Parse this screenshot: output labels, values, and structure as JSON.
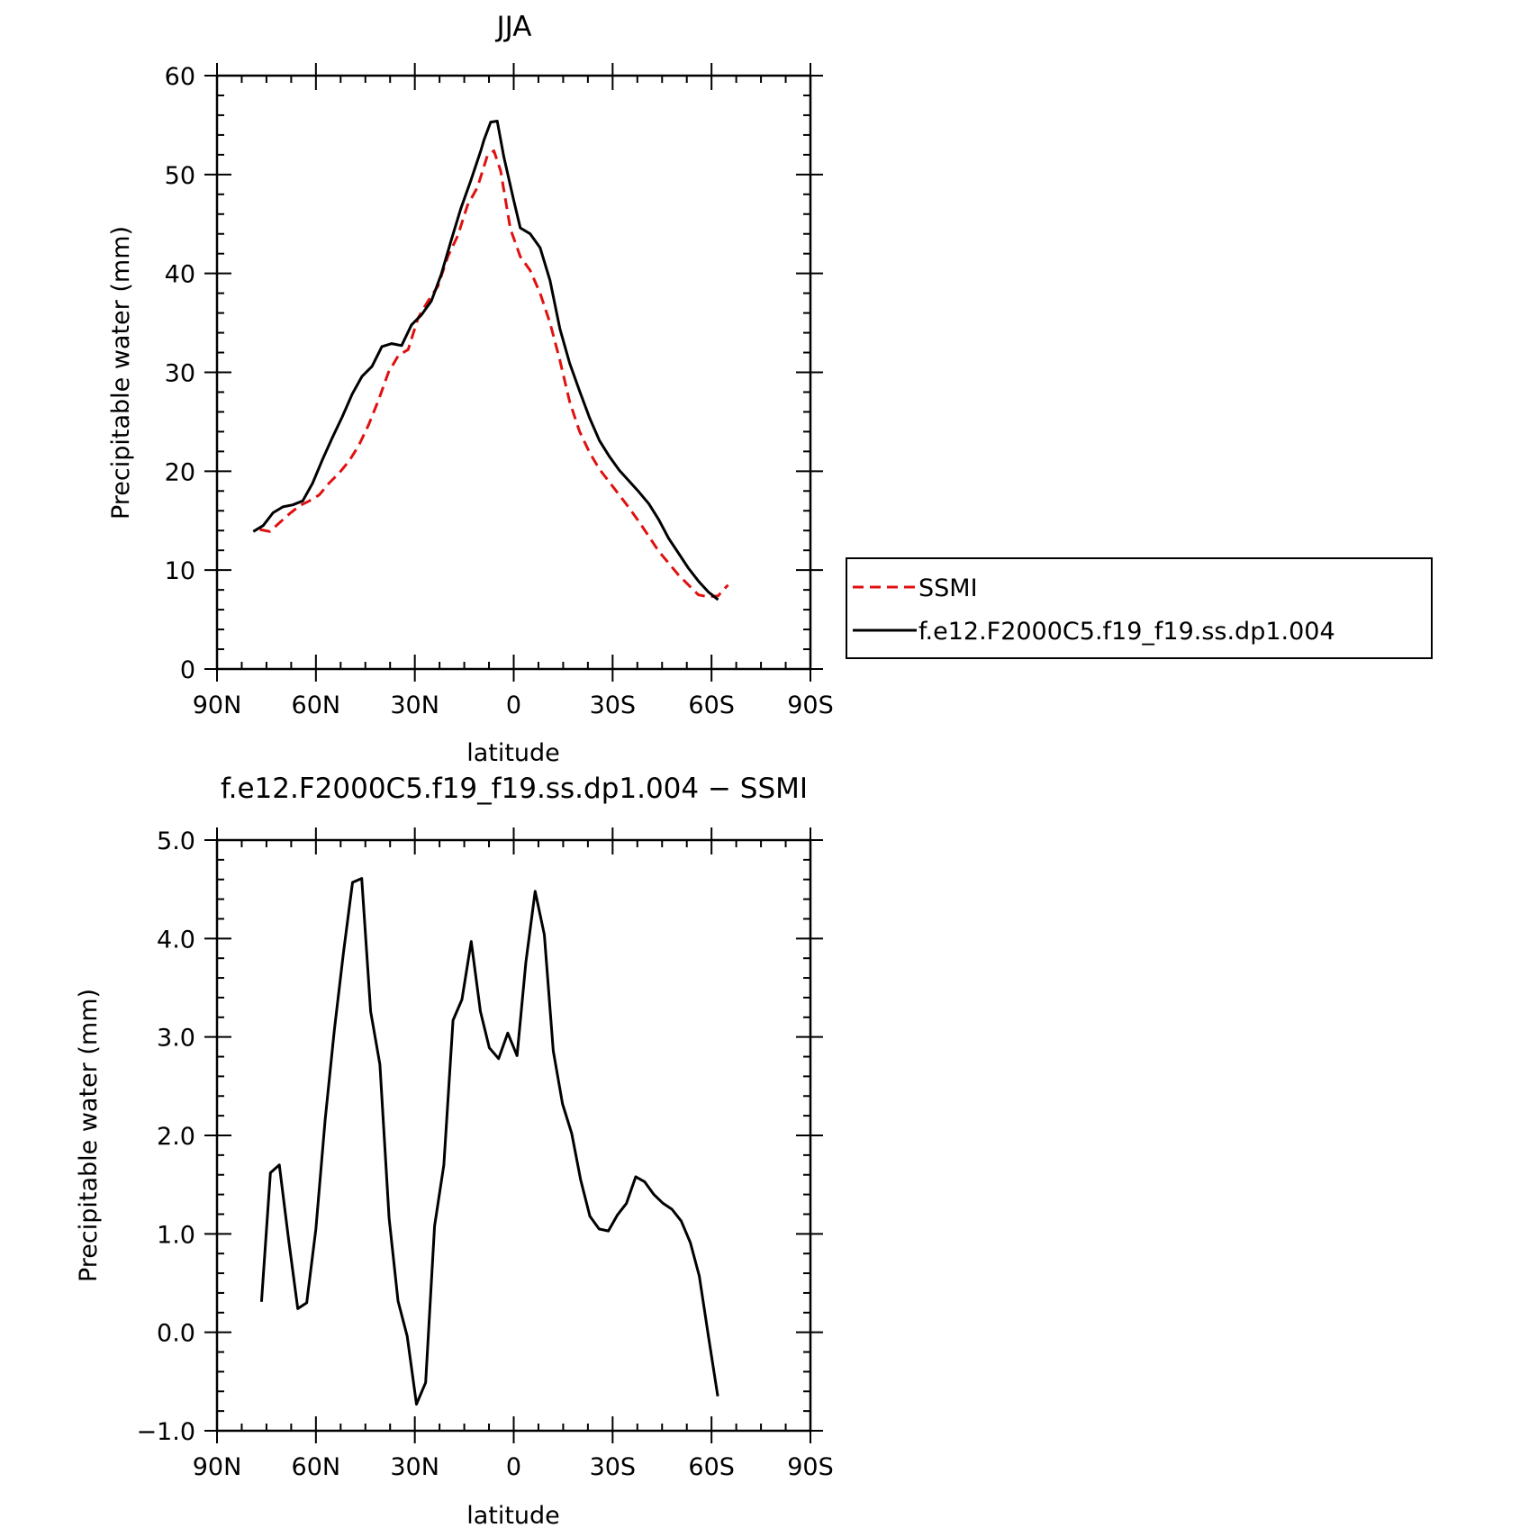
{
  "colors": {
    "ssmi": "#e01010",
    "model": "#000000",
    "diff": "#000000"
  },
  "chart_data": [
    {
      "type": "line",
      "title": "JJA",
      "xlabel": "latitude",
      "ylabel": "Precipitable water (mm)",
      "xlim": [
        -90,
        90
      ],
      "ylim": [
        0,
        60
      ],
      "xticks": [
        {
          "value": -90,
          "label": "90N"
        },
        {
          "value": -60,
          "label": "60N"
        },
        {
          "value": -30,
          "label": "30N"
        },
        {
          "value": 0,
          "label": "0"
        },
        {
          "value": 30,
          "label": "30S"
        },
        {
          "value": 60,
          "label": "60S"
        },
        {
          "value": 90,
          "label": "90S"
        }
      ],
      "yticks": [
        {
          "value": 0,
          "label": "0"
        },
        {
          "value": 10,
          "label": "10"
        },
        {
          "value": 20,
          "label": "20"
        },
        {
          "value": 30,
          "label": "30"
        },
        {
          "value": 40,
          "label": "40"
        },
        {
          "value": 50,
          "label": "50"
        },
        {
          "value": 60,
          "label": "60"
        }
      ],
      "legend_position": "right",
      "series": [
        {
          "name": "SSMI",
          "style": "dashed",
          "color": "#e01010",
          "points": [
            [
              -77,
              14.1
            ],
            [
              -74,
              13.9
            ],
            [
              -71,
              14.8
            ],
            [
              -68,
              15.7
            ],
            [
              -65,
              16.5
            ],
            [
              -62,
              17.0
            ],
            [
              -59,
              17.6
            ],
            [
              -56,
              18.8
            ],
            [
              -53,
              19.8
            ],
            [
              -50,
              21.0
            ],
            [
              -47,
              22.6
            ],
            [
              -44,
              24.7
            ],
            [
              -41,
              27.2
            ],
            [
              -38,
              30.0
            ],
            [
              -35,
              31.7
            ],
            [
              -32,
              32.3
            ],
            [
              -29,
              35.5
            ],
            [
              -26,
              37.2
            ],
            [
              -23,
              38.7
            ],
            [
              -20,
              41.7
            ],
            [
              -17,
              43.8
            ],
            [
              -14,
              46.9
            ],
            [
              -11,
              48.7
            ],
            [
              -8,
              51.9
            ],
            [
              -6,
              52.4
            ],
            [
              -4,
              50.4
            ],
            [
              -1,
              44.5
            ],
            [
              2,
              41.7
            ],
            [
              5,
              40.3
            ],
            [
              8,
              38.0
            ],
            [
              11,
              35.0
            ],
            [
              14,
              31.2
            ],
            [
              17,
              27.0
            ],
            [
              20,
              24.0
            ],
            [
              23,
              21.9
            ],
            [
              26,
              20.2
            ],
            [
              29,
              18.9
            ],
            [
              32,
              17.6
            ],
            [
              35,
              16.3
            ],
            [
              38,
              14.9
            ],
            [
              41,
              13.4
            ],
            [
              44,
              11.9
            ],
            [
              47,
              10.7
            ],
            [
              50,
              9.5
            ],
            [
              53,
              8.5
            ],
            [
              56,
              7.5
            ],
            [
              59,
              7.3
            ],
            [
              62,
              7.4
            ],
            [
              65,
              8.5
            ]
          ]
        },
        {
          "name": "f.e12.F2000C5.f19_f19.ss.dp1.004",
          "style": "solid",
          "color": "#000000",
          "points": [
            [
              -79,
              13.9
            ],
            [
              -76,
              14.5
            ],
            [
              -73,
              15.8
            ],
            [
              -70,
              16.4
            ],
            [
              -67,
              16.6
            ],
            [
              -64,
              17.0
            ],
            [
              -61,
              18.8
            ],
            [
              -58,
              21.2
            ],
            [
              -55,
              23.4
            ],
            [
              -52,
              25.5
            ],
            [
              -49,
              27.8
            ],
            [
              -46,
              29.6
            ],
            [
              -43,
              30.6
            ],
            [
              -40,
              32.6
            ],
            [
              -37,
              32.9
            ],
            [
              -34,
              32.7
            ],
            [
              -31,
              34.8
            ],
            [
              -28,
              35.8
            ],
            [
              -25,
              37.2
            ],
            [
              -22,
              39.9
            ],
            [
              -19,
              43.3
            ],
            [
              -16,
              46.6
            ],
            [
              -13,
              49.4
            ],
            [
              -10,
              52.4
            ],
            [
              -9,
              53.5
            ],
            [
              -7,
              55.3
            ],
            [
              -5,
              55.4
            ],
            [
              -3,
              51.8
            ],
            [
              0,
              47.4
            ],
            [
              2,
              44.6
            ],
            [
              5,
              44.0
            ],
            [
              8,
              42.6
            ],
            [
              11,
              39.3
            ],
            [
              14,
              34.4
            ],
            [
              17,
              30.9
            ],
            [
              20,
              28.1
            ],
            [
              23,
              25.4
            ],
            [
              26,
              23.1
            ],
            [
              29,
              21.5
            ],
            [
              32,
              20.1
            ],
            [
              35,
              19.0
            ],
            [
              38,
              17.9
            ],
            [
              41,
              16.7
            ],
            [
              44,
              15.1
            ],
            [
              47,
              13.2
            ],
            [
              50,
              11.7
            ],
            [
              53,
              10.2
            ],
            [
              56,
              8.9
            ],
            [
              59,
              7.8
            ],
            [
              62,
              7.0
            ]
          ]
        }
      ]
    },
    {
      "type": "line",
      "title": "f.e12.F2000C5.f19_f19.ss.dp1.004 − SSMI",
      "xlabel": "latitude",
      "ylabel": "Precipitable water (mm)",
      "xlim": [
        -90,
        90
      ],
      "ylim": [
        -1.0,
        5.0
      ],
      "xticks": [
        {
          "value": -90,
          "label": "90N"
        },
        {
          "value": -60,
          "label": "60N"
        },
        {
          "value": -30,
          "label": "30N"
        },
        {
          "value": 0,
          "label": "0"
        },
        {
          "value": 30,
          "label": "30S"
        },
        {
          "value": 60,
          "label": "60S"
        },
        {
          "value": 90,
          "label": "90S"
        }
      ],
      "yticks": [
        {
          "value": -1.0,
          "label": "−1.0"
        },
        {
          "value": 0.0,
          "label": "0.0"
        },
        {
          "value": 1.0,
          "label": "1.0"
        },
        {
          "value": 2.0,
          "label": "2.0"
        },
        {
          "value": 3.0,
          "label": "3.0"
        },
        {
          "value": 4.0,
          "label": "4.0"
        },
        {
          "value": 5.0,
          "label": "5.0"
        }
      ],
      "series": [
        {
          "style": "solid",
          "color": "#000000",
          "points": [
            [
              -76.5,
              0.31
            ],
            [
              -73.8,
              1.62
            ],
            [
              -71.1,
              1.7
            ],
            [
              -68.3,
              0.95
            ],
            [
              -65.5,
              0.24
            ],
            [
              -62.8,
              0.3
            ],
            [
              -60.0,
              1.05
            ],
            [
              -57.2,
              2.16
            ],
            [
              -54.4,
              3.07
            ],
            [
              -51.7,
              3.84
            ],
            [
              -48.9,
              4.57
            ],
            [
              -46.1,
              4.61
            ],
            [
              -43.4,
              3.26
            ],
            [
              -40.6,
              2.72
            ],
            [
              -37.8,
              1.16
            ],
            [
              -35.1,
              0.32
            ],
            [
              -32.3,
              -0.04
            ],
            [
              -29.5,
              -0.73
            ],
            [
              -26.7,
              -0.51
            ],
            [
              -24.0,
              1.08
            ],
            [
              -21.2,
              1.7
            ],
            [
              -18.4,
              3.17
            ],
            [
              -15.7,
              3.38
            ],
            [
              -12.9,
              3.97
            ],
            [
              -10.1,
              3.26
            ],
            [
              -7.4,
              2.89
            ],
            [
              -4.6,
              2.78
            ],
            [
              -1.8,
              3.04
            ],
            [
              1.0,
              2.81
            ],
            [
              3.7,
              3.76
            ],
            [
              6.5,
              4.48
            ],
            [
              9.3,
              4.04
            ],
            [
              12.0,
              2.86
            ],
            [
              14.8,
              2.32
            ],
            [
              17.6,
              2.02
            ],
            [
              20.3,
              1.55
            ],
            [
              23.1,
              1.18
            ],
            [
              25.9,
              1.05
            ],
            [
              28.7,
              1.03
            ],
            [
              31.4,
              1.19
            ],
            [
              34.2,
              1.31
            ],
            [
              37.0,
              1.58
            ],
            [
              39.7,
              1.53
            ],
            [
              42.5,
              1.4
            ],
            [
              45.3,
              1.31
            ],
            [
              48.0,
              1.25
            ],
            [
              50.8,
              1.13
            ],
            [
              53.6,
              0.91
            ],
            [
              56.3,
              0.57
            ],
            [
              59.1,
              -0.05
            ],
            [
              61.9,
              -0.65
            ]
          ]
        }
      ]
    }
  ]
}
